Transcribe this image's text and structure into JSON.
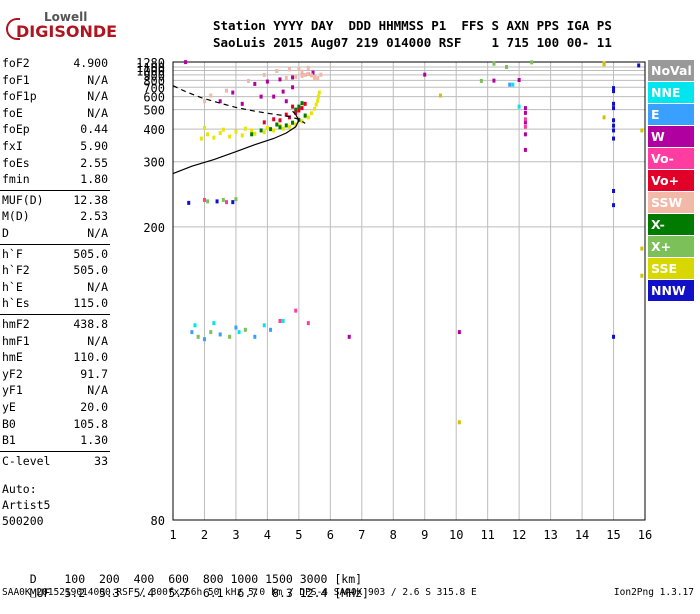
{
  "logo": {
    "line1": "Lowell",
    "line2": "DIGISONDE"
  },
  "header": {
    "line1": "Station YYYY DAY  DDD HHMMSS P1  FFS S AXN PPS IGA PS",
    "line2": "SaoLuis 2015 Aug07 219 014000 RSF    1 715 100 00- 11"
  },
  "params": [
    {
      "name": "foF2",
      "value": "4.900"
    },
    {
      "name": "foF1",
      "value": "N/A"
    },
    {
      "name": "foF1p",
      "value": "N/A"
    },
    {
      "name": "foE",
      "value": "N/A"
    },
    {
      "name": "foEp",
      "value": "0.44"
    },
    {
      "name": "fxI",
      "value": "5.90"
    },
    {
      "name": "foEs",
      "value": "2.55"
    },
    {
      "name": "fmin",
      "value": "1.80"
    },
    {
      "name": "MUF(D)",
      "value": "12.38"
    },
    {
      "name": "M(D)",
      "value": "2.53"
    },
    {
      "name": "D",
      "value": "N/A"
    },
    {
      "name": "h`F",
      "value": "505.0"
    },
    {
      "name": "h`F2",
      "value": "505.0"
    },
    {
      "name": "h`E",
      "value": "N/A"
    },
    {
      "name": "h`Es",
      "value": "115.0"
    },
    {
      "name": "hmF2",
      "value": "438.8"
    },
    {
      "name": "hmF1",
      "value": "N/A"
    },
    {
      "name": "hmE",
      "value": "110.0"
    },
    {
      "name": "yF2",
      "value": "91.7"
    },
    {
      "name": "yF1",
      "value": "N/A"
    },
    {
      "name": "yE",
      "value": "20.0"
    },
    {
      "name": "B0",
      "value": "105.8"
    },
    {
      "name": "B1",
      "value": "1.30"
    },
    {
      "name": "C-level",
      "value": "33"
    }
  ],
  "notes": {
    "auto": "Auto:",
    "artist": "Artist5",
    "version": "500200"
  },
  "muf_table": {
    "d_label": "D",
    "d_values": "100  200  400  600  800 1000 1500 3000 [km]",
    "muf_label": "MUF",
    "muf_values": "5.2  5.3  5.4  5.7  6.1  6.7  8.3 12.4 [MHz]"
  },
  "footer": {
    "left": "SAA0K_2015219014000.RSF / 300fx256h 50 kHz 5.0 km / DPS-4 SAA0K 903 / 2.6 S 315.8 E",
    "right": "Ion2Png 1.3.17"
  },
  "legend": [
    {
      "label": "NoVal",
      "color": "#999999"
    },
    {
      "label": "NNE",
      "color": "#00e5ee"
    },
    {
      "label": "E",
      "color": "#3aa0ff"
    },
    {
      "label": "W",
      "color": "#b0009f"
    },
    {
      "label": "Vo-",
      "color": "#ff3ca0"
    },
    {
      "label": "Vo+",
      "color": "#e00028"
    },
    {
      "label": "SSW",
      "color": "#f2b8a8"
    },
    {
      "label": "X-",
      "color": "#007a00"
    },
    {
      "label": "X+",
      "color": "#7cc05a"
    },
    {
      "label": "SSE",
      "color": "#d8d800"
    },
    {
      "label": "NNW",
      "color": "#1010c8"
    }
  ],
  "chart_data": {
    "type": "scatter",
    "xlabel": "",
    "ylabel": "",
    "xlim": [
      1,
      16
    ],
    "ylim": [
      80,
      1280
    ],
    "x_ticks": [
      "1",
      "2",
      "3",
      "4",
      "5",
      "6",
      "7",
      "8",
      "9",
      "10",
      "11",
      "12",
      "13",
      "14",
      "15",
      "16"
    ],
    "y_ticks": [
      "80",
      "200",
      "300",
      "400",
      "500",
      "600",
      "700",
      "800",
      "900",
      "1000",
      "1100",
      "1280"
    ],
    "grid": true,
    "y_scale": "reciprocal",
    "series": [
      {
        "color": "#e6e600",
        "points": [
          [
            1.9,
            365
          ],
          [
            2.3,
            368
          ],
          [
            2.8,
            372
          ],
          [
            3.2,
            376
          ],
          [
            3.6,
            382
          ],
          [
            3.9,
            388
          ],
          [
            4.2,
            395
          ],
          [
            4.5,
            402
          ],
          [
            4.7,
            410
          ],
          [
            4.9,
            420
          ],
          [
            5.1,
            435
          ],
          [
            5.3,
            455
          ],
          [
            5.4,
            478
          ],
          [
            5.5,
            505
          ],
          [
            5.55,
            535
          ],
          [
            5.6,
            565
          ],
          [
            5.62,
            600
          ],
          [
            5.65,
            640
          ],
          [
            2.1,
            380
          ],
          [
            2.5,
            385
          ],
          [
            3.0,
            390
          ],
          [
            3.5,
            395
          ],
          [
            4.0,
            405
          ],
          [
            4.4,
            415
          ],
          [
            4.8,
            430
          ],
          [
            5.2,
            460
          ],
          [
            3.3,
            402
          ],
          [
            2.0,
            405
          ],
          [
            2.6,
            398
          ]
        ]
      },
      {
        "color": "#007a00",
        "points": [
          [
            3.8,
            395
          ],
          [
            4.1,
            400
          ],
          [
            4.4,
            408
          ],
          [
            4.6,
            416
          ],
          [
            4.8,
            428
          ],
          [
            5.0,
            442
          ],
          [
            5.2,
            465
          ],
          [
            4.9,
            500
          ],
          [
            5.1,
            545
          ],
          [
            3.5,
            380
          ],
          [
            4.3,
            420
          ],
          [
            5.0,
            520
          ]
        ]
      },
      {
        "color": "#e00028",
        "points": [
          [
            4.7,
            455
          ],
          [
            4.9,
            480
          ],
          [
            5.1,
            510
          ],
          [
            4.6,
            470
          ],
          [
            4.4,
            440
          ],
          [
            5.0,
            495
          ],
          [
            4.8,
            520
          ],
          [
            3.9,
            430
          ],
          [
            4.2,
            445
          ],
          [
            5.2,
            540
          ]
        ]
      },
      {
        "color": "#b0009f",
        "points": [
          [
            3.6,
            745
          ],
          [
            4.0,
            780
          ],
          [
            4.4,
            815
          ],
          [
            4.8,
            850
          ],
          [
            5.1,
            885
          ],
          [
            5.3,
            920
          ],
          [
            5.45,
            950
          ],
          [
            4.2,
            600
          ],
          [
            4.5,
            650
          ],
          [
            4.8,
            700
          ],
          [
            3.8,
            600
          ],
          [
            3.2,
            540
          ],
          [
            4.6,
            560
          ],
          [
            2.5,
            560
          ],
          [
            2.9,
            640
          ],
          [
            12.2,
            510
          ],
          [
            12.2,
            480
          ],
          [
            12.2,
            430
          ],
          [
            12.2,
            380
          ],
          [
            12.2,
            330
          ],
          [
            6.6,
            128
          ],
          [
            10.1,
            130
          ],
          [
            1.4,
            1275
          ],
          [
            12.0,
            805
          ],
          [
            9.0,
            905
          ],
          [
            11.2,
            795
          ]
        ]
      },
      {
        "color": "#f2b8a8",
        "points": [
          [
            4.6,
            840
          ],
          [
            4.9,
            860
          ],
          [
            5.1,
            880
          ],
          [
            5.2,
            900
          ],
          [
            5.3,
            920
          ],
          [
            5.4,
            890
          ],
          [
            5.5,
            860
          ],
          [
            5.6,
            840
          ],
          [
            4.3,
            990
          ],
          [
            4.7,
            1030
          ],
          [
            5.0,
            1055
          ],
          [
            5.3,
            1075
          ],
          [
            5.1,
            970
          ],
          [
            3.9,
            900
          ],
          [
            3.4,
            790
          ],
          [
            2.7,
            660
          ],
          [
            2.2,
            610
          ],
          [
            2.0,
            560
          ],
          [
            5.7,
            905
          ],
          [
            5.5,
            820
          ]
        ]
      },
      {
        "color": "#7cc05a",
        "points": [
          [
            2.1,
            230
          ],
          [
            2.6,
            232
          ],
          [
            3.0,
            233
          ],
          [
            1.8,
            128
          ],
          [
            2.2,
            130
          ],
          [
            2.8,
            128
          ],
          [
            3.3,
            131
          ],
          [
            11.2,
            1210
          ],
          [
            11.6,
            1100
          ],
          [
            12.4,
            1265
          ],
          [
            10.8,
            790
          ]
        ]
      },
      {
        "color": "#3aa0ff",
        "points": [
          [
            1.6,
            130
          ],
          [
            2.0,
            127
          ],
          [
            2.5,
            129
          ],
          [
            3.0,
            132
          ],
          [
            3.6,
            128
          ],
          [
            4.1,
            131
          ],
          [
            11.7,
            735
          ]
        ]
      },
      {
        "color": "#1010c8",
        "points": [
          [
            15.0,
            690
          ],
          [
            15.0,
            655
          ],
          [
            15.0,
            540
          ],
          [
            15.0,
            510
          ],
          [
            15.0,
            440
          ],
          [
            15.0,
            415
          ],
          [
            15.0,
            395
          ],
          [
            15.0,
            365
          ],
          [
            15.0,
            245
          ],
          [
            15.0,
            225
          ],
          [
            15.0,
            128
          ],
          [
            15.8,
            1150
          ],
          [
            1.5,
            228
          ],
          [
            2.4,
            230
          ],
          [
            2.9,
            229
          ]
        ]
      },
      {
        "color": "#00e5ee",
        "points": [
          [
            1.7,
            133
          ],
          [
            2.3,
            134
          ],
          [
            3.1,
            130
          ],
          [
            3.9,
            133
          ],
          [
            4.5,
            135
          ],
          [
            11.8,
            735
          ],
          [
            12.0,
            520
          ]
        ]
      },
      {
        "color": "#ff3ca0",
        "points": [
          [
            2.0,
            232
          ],
          [
            2.7,
            229
          ],
          [
            12.2,
            445
          ],
          [
            12.2,
            410
          ],
          [
            4.4,
            135
          ],
          [
            4.9,
            140
          ],
          [
            5.3,
            134
          ]
        ]
      },
      {
        "color": "#d8c000",
        "points": [
          [
            14.7,
            1225
          ],
          [
            14.7,
            1205
          ],
          [
            14.7,
            1190
          ],
          [
            15.9,
            180
          ],
          [
            15.9,
            160
          ],
          [
            14.7,
            455
          ],
          [
            15.9,
            395
          ],
          [
            9.5,
            610
          ],
          [
            10.1,
            100
          ]
        ]
      }
    ],
    "traces": [
      {
        "style": "dashed",
        "points": [
          [
            1.0,
            720
          ],
          [
            1.4,
            650
          ],
          [
            1.9,
            590
          ],
          [
            2.5,
            545
          ],
          [
            3.0,
            515
          ],
          [
            3.6,
            490
          ],
          [
            4.1,
            475
          ],
          [
            4.5,
            465
          ],
          [
            4.8,
            455
          ],
          [
            5.0,
            445
          ],
          [
            5.2,
            425
          ]
        ]
      },
      {
        "style": "solid",
        "points": [
          [
            1.0,
            275
          ],
          [
            1.6,
            290
          ],
          [
            2.3,
            305
          ],
          [
            3.0,
            325
          ],
          [
            3.6,
            345
          ],
          [
            4.2,
            365
          ],
          [
            4.6,
            385
          ],
          [
            4.9,
            410
          ],
          [
            5.0,
            440
          ],
          [
            4.9,
            470
          ],
          [
            4.8,
            490
          ]
        ]
      }
    ]
  }
}
